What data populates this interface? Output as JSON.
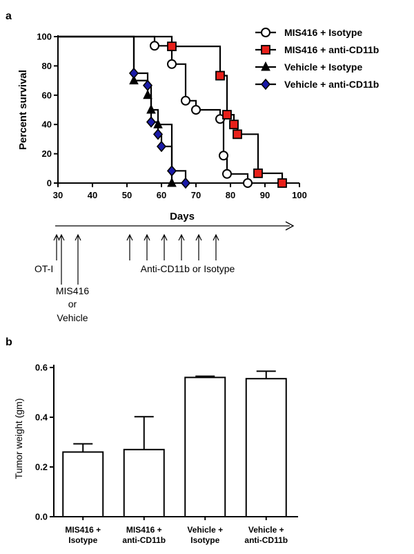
{
  "panels": {
    "a_label": "a",
    "b_label": "b"
  },
  "chart_data": [
    {
      "type": "line",
      "subtype": "kaplan-meier step",
      "xlabel": "Days",
      "ylabel": "Percent survival",
      "xlim": [
        30,
        100
      ],
      "ylim": [
        0,
        100
      ],
      "xticks": [
        30,
        40,
        50,
        60,
        70,
        80,
        90,
        100
      ],
      "yticks": [
        0,
        20,
        40,
        60,
        80,
        100
      ],
      "grid": false,
      "legend_position": "top-right",
      "series": [
        {
          "name": "MIS416 + Isotype",
          "marker": "circle",
          "marker_fill": "#ffffff",
          "steps": [
            [
              30,
              100
            ],
            [
              58,
              100
            ],
            [
              58,
              93.75
            ],
            [
              63,
              93.75
            ],
            [
              63,
              81.25
            ],
            [
              67,
              81.25
            ],
            [
              67,
              56.25
            ],
            [
              70,
              56.25
            ],
            [
              70,
              50
            ],
            [
              77,
              50
            ],
            [
              77,
              43.75
            ],
            [
              78,
              43.75
            ],
            [
              78,
              18.75
            ],
            [
              79,
              18.75
            ],
            [
              79,
              6.25
            ],
            [
              85,
              6.25
            ],
            [
              85,
              0
            ]
          ],
          "points": [
            [
              58,
              93.75
            ],
            [
              63,
              81.25
            ],
            [
              67,
              56.25
            ],
            [
              70,
              50
            ],
            [
              77,
              43.75
            ],
            [
              78,
              18.75
            ],
            [
              79,
              6.25
            ],
            [
              85,
              0
            ]
          ]
        },
        {
          "name": "MIS416 + anti-CD11b",
          "marker": "square",
          "marker_fill": "#e8201a",
          "steps": [
            [
              30,
              100
            ],
            [
              63,
              100
            ],
            [
              63,
              93.33
            ],
            [
              77,
              93.33
            ],
            [
              77,
              73.33
            ],
            [
              79,
              73.33
            ],
            [
              79,
              46.67
            ],
            [
              81,
              46.67
            ],
            [
              81,
              40
            ],
            [
              82,
              40
            ],
            [
              82,
              33.33
            ],
            [
              88,
              33.33
            ],
            [
              88,
              6.67
            ],
            [
              95,
              6.67
            ],
            [
              95,
              0
            ]
          ],
          "points": [
            [
              63,
              93.33
            ],
            [
              77,
              73.33
            ],
            [
              79,
              46.67
            ],
            [
              81,
              40
            ],
            [
              82,
              33.33
            ],
            [
              88,
              6.67
            ],
            [
              95,
              0
            ]
          ]
        },
        {
          "name": "Vehicle + Isotype",
          "marker": "triangle",
          "marker_fill": "#000000",
          "steps": [
            [
              30,
              100
            ],
            [
              52,
              100
            ],
            [
              52,
              70
            ],
            [
              56,
              70
            ],
            [
              56,
              60
            ],
            [
              57,
              60
            ],
            [
              57,
              50
            ],
            [
              59,
              50
            ],
            [
              59,
              40
            ],
            [
              63,
              40
            ],
            [
              63,
              0
            ]
          ],
          "points": [
            [
              52,
              70
            ],
            [
              56,
              60
            ],
            [
              57,
              50
            ],
            [
              59,
              40
            ],
            [
              63,
              0
            ]
          ]
        },
        {
          "name": "Vehicle + anti-CD11b",
          "marker": "diamond",
          "marker_fill": "#1a1aa8",
          "steps": [
            [
              30,
              100
            ],
            [
              52,
              100
            ],
            [
              52,
              75
            ],
            [
              56,
              75
            ],
            [
              56,
              66.67
            ],
            [
              57,
              66.67
            ],
            [
              57,
              41.67
            ],
            [
              59,
              41.67
            ],
            [
              59,
              33.33
            ],
            [
              60,
              33.33
            ],
            [
              60,
              25
            ],
            [
              63,
              25
            ],
            [
              63,
              8.33
            ],
            [
              67,
              8.33
            ],
            [
              67,
              0
            ]
          ],
          "points": [
            [
              52,
              75
            ],
            [
              56,
              66.67
            ],
            [
              57,
              41.67
            ],
            [
              59,
              33.33
            ],
            [
              60,
              25
            ],
            [
              63,
              8.33
            ],
            [
              67,
              0
            ]
          ]
        }
      ]
    },
    {
      "type": "bar",
      "ylabel": "Tumor weight (gm)",
      "ylim": [
        0,
        0.6
      ],
      "yticks": [
        0.0,
        0.2,
        0.4,
        0.6
      ],
      "ytick_labels": [
        "0.0",
        "0.2",
        "0.4",
        "0.6"
      ],
      "categories": [
        [
          "MIS416 +",
          "Isotype"
        ],
        [
          "MIS416 +",
          "anti-CD11b"
        ],
        [
          "Vehicle +",
          "Isotype"
        ],
        [
          "Vehicle +",
          "anti-CD11b"
        ]
      ],
      "values": [
        0.26,
        0.27,
        0.56,
        0.555
      ],
      "error": [
        0.033,
        0.132,
        0.005,
        0.03
      ],
      "bar_fill": "#ffffff",
      "grid": false
    }
  ],
  "timeline": {
    "day_range": [
      30,
      100
    ],
    "arrow_days": [
      30,
      31,
      36,
      51,
      56,
      61,
      66,
      71,
      76
    ],
    "labels": {
      "otI": "OT-I",
      "mis_line1": "MIS416",
      "mis_line2": "or",
      "mis_line3": "Vehicle",
      "treatment": "Anti-CD11b or Isotype"
    }
  }
}
